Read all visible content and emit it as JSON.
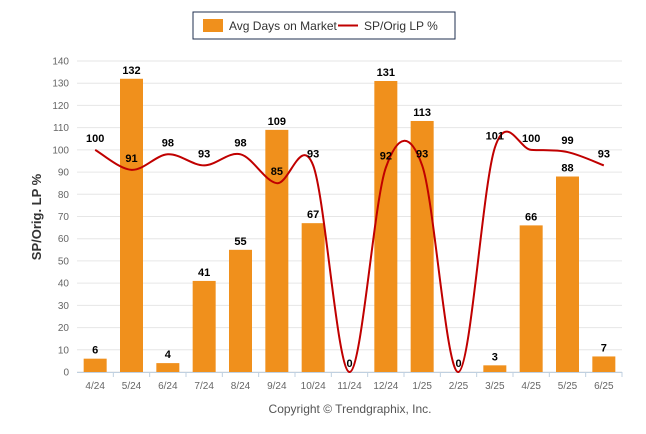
{
  "chart_data": {
    "type": "bar",
    "categories": [
      "4/24",
      "5/24",
      "6/24",
      "7/24",
      "8/24",
      "9/24",
      "10/24",
      "11/24",
      "12/24",
      "1/25",
      "2/25",
      "3/25",
      "4/25",
      "5/25",
      "6/25"
    ],
    "series": [
      {
        "name": "Avg Days on Market",
        "type": "bar",
        "color": "#f0901c",
        "values": [
          6,
          132,
          4,
          41,
          55,
          109,
          67,
          0,
          131,
          113,
          0,
          3,
          66,
          88,
          7
        ]
      },
      {
        "name": "SP/Orig LP %",
        "type": "line",
        "color": "#c00000",
        "values": [
          100,
          91,
          98,
          93,
          98,
          85,
          93,
          0,
          92,
          93,
          0,
          101,
          100,
          99,
          93
        ]
      }
    ],
    "ylabel": "SP/Orig. LP %",
    "ylim": [
      0,
      140
    ],
    "yticks": [
      0,
      10,
      20,
      30,
      40,
      50,
      60,
      70,
      80,
      90,
      100,
      110,
      120,
      130,
      140
    ],
    "grid": true,
    "legend_position": "top-center",
    "credit": "Copyright © Trendgraphix, Inc."
  }
}
